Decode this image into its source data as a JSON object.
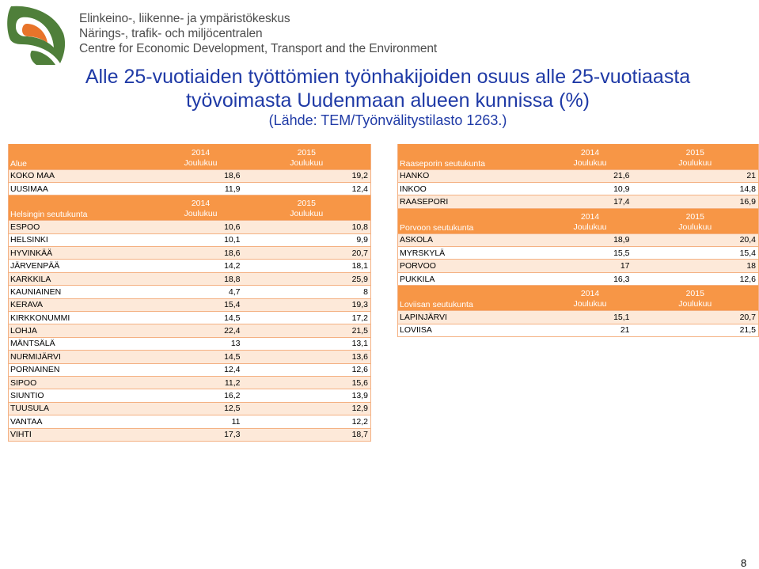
{
  "header": {
    "org_fi": "Elinkeino-, liikenne- ja ympäristökeskus",
    "org_sv": "Närings-, trafik- och miljöcentralen",
    "org_en": "Centre for Economic Development, Transport and the Environment"
  },
  "title": {
    "line1": "Alle 25-vuotiaiden työttömien työnhakijoiden osuus alle 25-vuotiaasta",
    "line2": "työvoimasta Uudenmaan alueen kunnissa (%)",
    "source": "(Lähde: TEM/Työnvälitystilasto 1263.)"
  },
  "columns": {
    "y1": "2014",
    "y2": "2015",
    "month": "Joulukuu"
  },
  "left_table": {
    "header_label": "Alue",
    "top_rows": [
      {
        "name": "KOKO MAA",
        "v2014": "18,6",
        "v2015": "19,2"
      },
      {
        "name": "UUSIMAA",
        "v2014": "11,9",
        "v2015": "12,4"
      }
    ],
    "group_label": "Helsingin seutukunta",
    "group_rows": [
      {
        "name": "ESPOO",
        "v2014": "10,6",
        "v2015": "10,8"
      },
      {
        "name": "HELSINKI",
        "v2014": "10,1",
        "v2015": "9,9"
      },
      {
        "name": "HYVINKÄÄ",
        "v2014": "18,6",
        "v2015": "20,7"
      },
      {
        "name": "JÄRVENPÄÄ",
        "v2014": "14,2",
        "v2015": "18,1"
      },
      {
        "name": "KARKKILA",
        "v2014": "18,8",
        "v2015": "25,9"
      },
      {
        "name": "KAUNIAINEN",
        "v2014": "4,7",
        "v2015": "8"
      },
      {
        "name": "KERAVA",
        "v2014": "15,4",
        "v2015": "19,3"
      },
      {
        "name": "KIRKKONUMMI",
        "v2014": "14,5",
        "v2015": "17,2"
      },
      {
        "name": "LOHJA",
        "v2014": "22,4",
        "v2015": "21,5"
      },
      {
        "name": "MÄNTSÄLÄ",
        "v2014": "13",
        "v2015": "13,1"
      },
      {
        "name": "NURMIJÄRVI",
        "v2014": "14,5",
        "v2015": "13,6"
      },
      {
        "name": "PORNAINEN",
        "v2014": "12,4",
        "v2015": "12,6"
      },
      {
        "name": "SIPOO",
        "v2014": "11,2",
        "v2015": "15,6"
      },
      {
        "name": "SIUNTIO",
        "v2014": "16,2",
        "v2015": "13,9"
      },
      {
        "name": "TUUSULA",
        "v2014": "12,5",
        "v2015": "12,9"
      },
      {
        "name": "VANTAA",
        "v2014": "11",
        "v2015": "12,2"
      },
      {
        "name": "VIHTI",
        "v2014": "17,3",
        "v2015": "18,7"
      }
    ]
  },
  "right_table": {
    "groups": [
      {
        "label": "Raaseporin seutukunta",
        "rows": [
          {
            "name": "HANKO",
            "v2014": "21,6",
            "v2015": "21"
          },
          {
            "name": "INKOO",
            "v2014": "10,9",
            "v2015": "14,8"
          },
          {
            "name": "RAASEPORI",
            "v2014": "17,4",
            "v2015": "16,9"
          }
        ]
      },
      {
        "label": "Porvoon seutukunta",
        "rows": [
          {
            "name": "ASKOLA",
            "v2014": "18,9",
            "v2015": "20,4"
          },
          {
            "name": "MYRSKYLÄ",
            "v2014": "15,5",
            "v2015": "15,4"
          },
          {
            "name": "PORVOO",
            "v2014": "17",
            "v2015": "18"
          },
          {
            "name": "PUKKILA",
            "v2014": "16,3",
            "v2015": "12,6"
          }
        ]
      },
      {
        "label": "Loviisan seutukunta",
        "rows": [
          {
            "name": "LAPINJÄRVI",
            "v2014": "15,1",
            "v2015": "20,7"
          },
          {
            "name": "LOVIISA",
            "v2014": "21",
            "v2015": "21,5"
          }
        ]
      }
    ]
  },
  "page_number": "8",
  "colors": {
    "accent_orange": "#f79646",
    "row_tint": "#fde9d9",
    "title_blue": "#1f3aa6",
    "logo_green": "#4f7f3a",
    "logo_orange": "#e8742a"
  }
}
